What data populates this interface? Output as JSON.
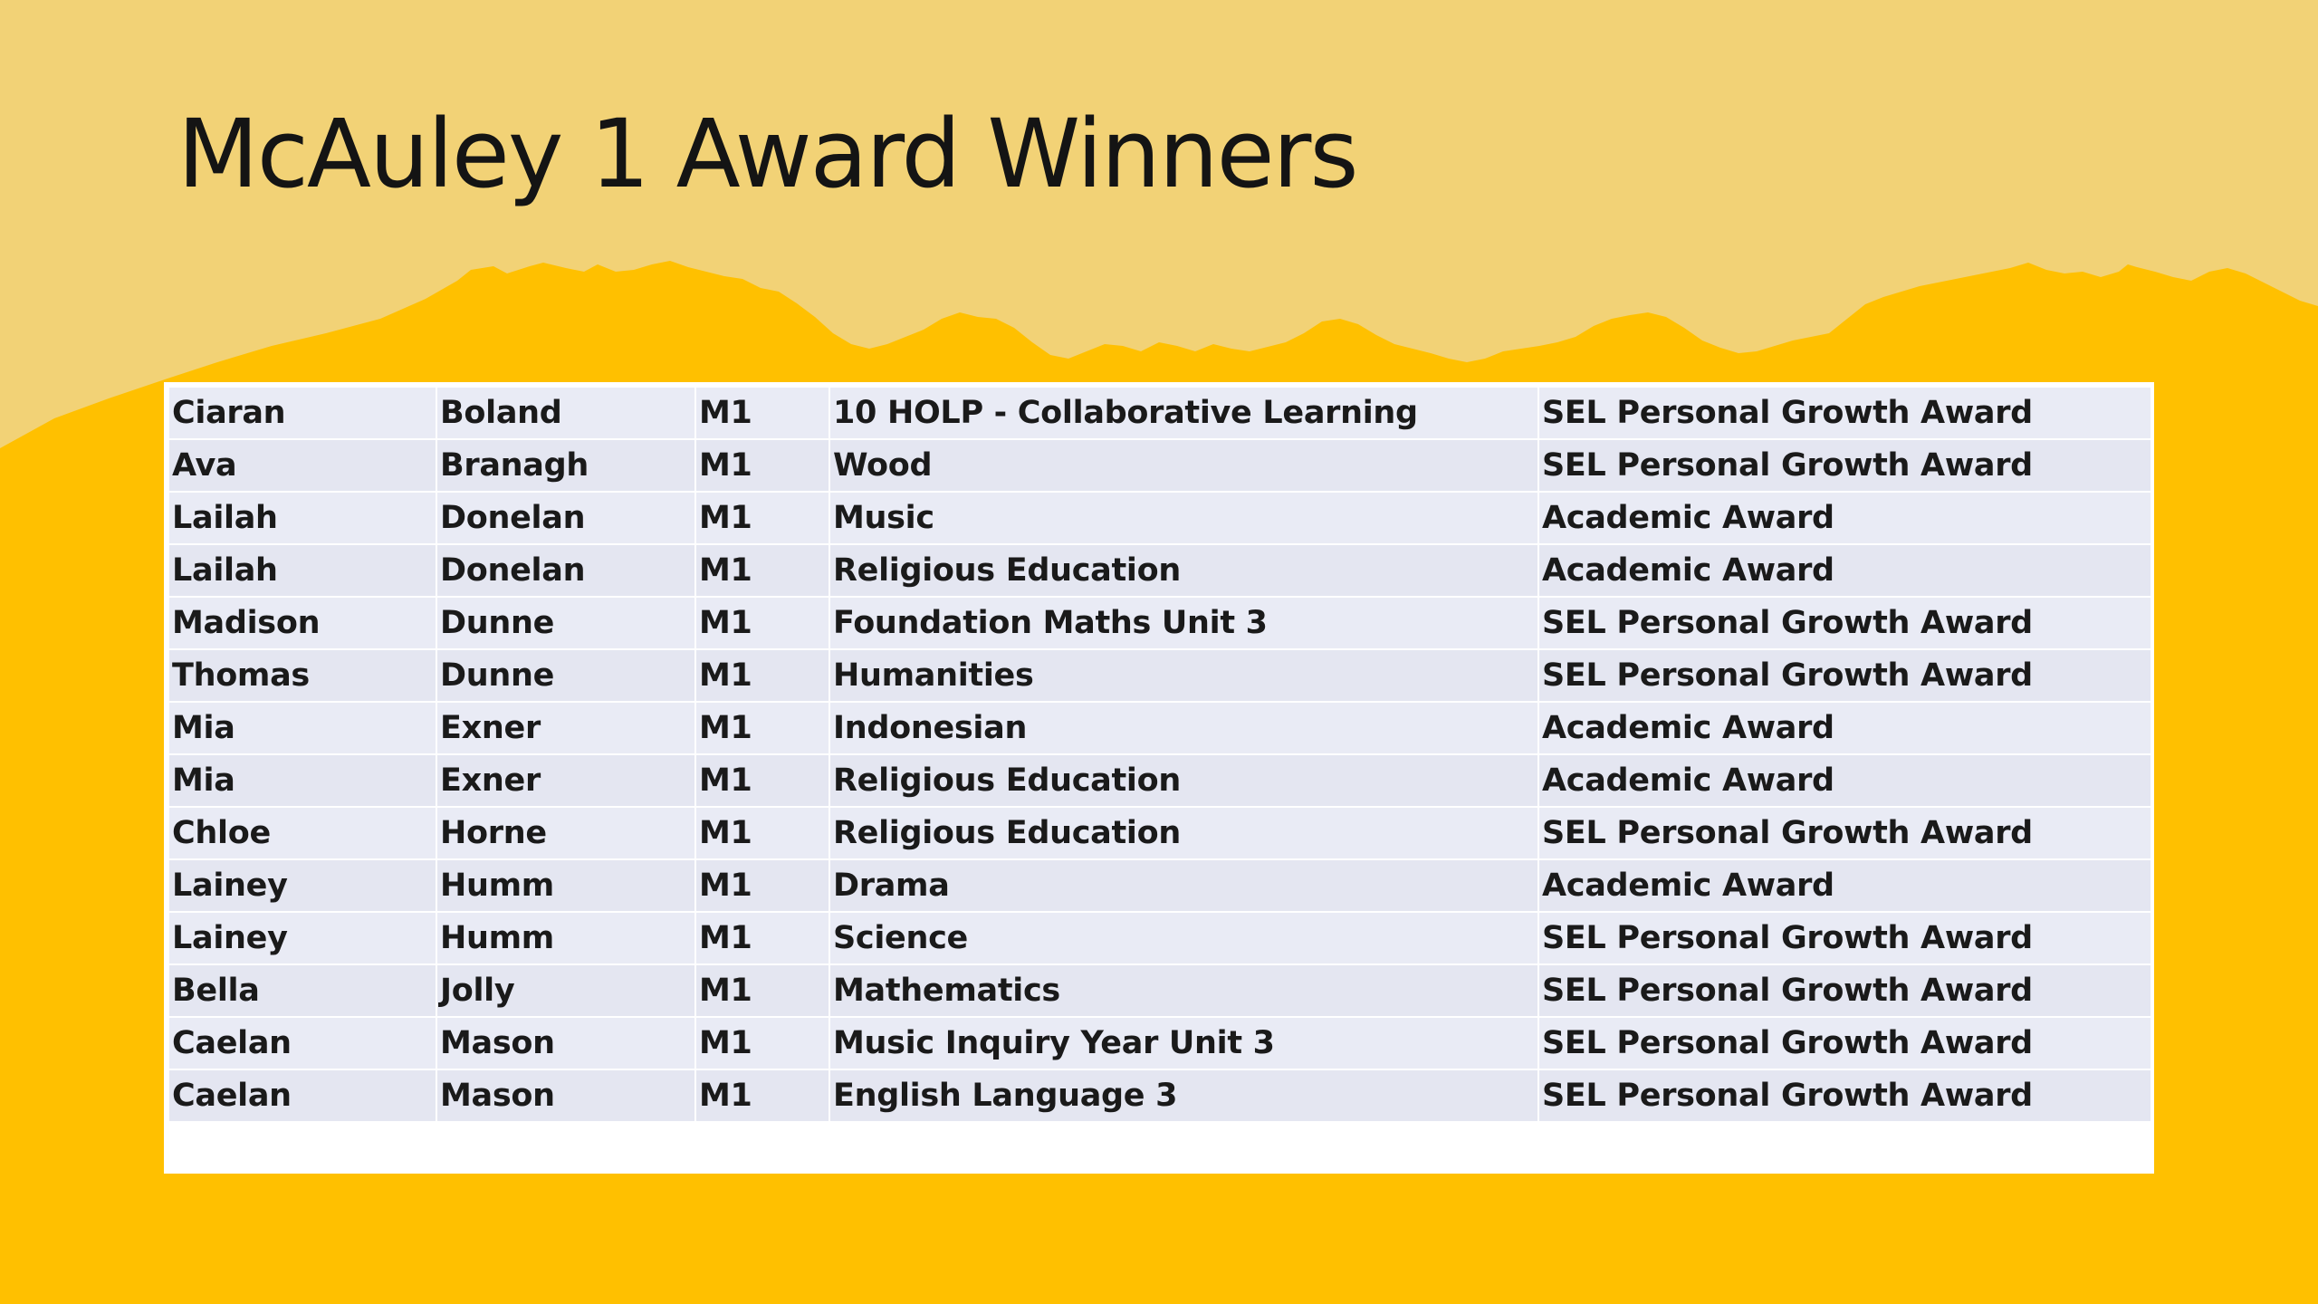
{
  "slide": {
    "title": "McAuley 1 Award Winners"
  },
  "colors": {
    "background_light": "#F2D276",
    "background_gold": "#FFC000",
    "table_row": "#E9EBF5",
    "title_text": "#141414"
  },
  "table": {
    "rows": [
      {
        "first": "Ciaran",
        "last": "Boland",
        "class": "M1",
        "subject": "10 HOLP - Collaborative Learning",
        "award": "SEL Personal Growth Award"
      },
      {
        "first": "Ava",
        "last": "Branagh",
        "class": "M1",
        "subject": "Wood",
        "award": "SEL Personal Growth Award"
      },
      {
        "first": "Lailah",
        "last": "Donelan",
        "class": "M1",
        "subject": "Music",
        "award": "Academic Award"
      },
      {
        "first": "Lailah",
        "last": "Donelan",
        "class": "M1",
        "subject": "Religious Education",
        "award": "Academic Award"
      },
      {
        "first": "Madison",
        "last": "Dunne",
        "class": "M1",
        "subject": "Foundation Maths Unit 3",
        "award": "SEL Personal Growth Award"
      },
      {
        "first": "Thomas",
        "last": "Dunne",
        "class": "M1",
        "subject": "Humanities",
        "award": "SEL Personal Growth Award"
      },
      {
        "first": "Mia",
        "last": "Exner",
        "class": "M1",
        "subject": "Indonesian",
        "award": "Academic Award"
      },
      {
        "first": "Mia",
        "last": "Exner",
        "class": "M1",
        "subject": "Religious Education",
        "award": "Academic Award"
      },
      {
        "first": "Chloe",
        "last": "Horne",
        "class": "M1",
        "subject": "Religious Education",
        "award": "SEL Personal Growth Award"
      },
      {
        "first": "Lainey",
        "last": "Humm",
        "class": "M1",
        "subject": "Drama",
        "award": "Academic Award"
      },
      {
        "first": "Lainey",
        "last": "Humm",
        "class": "M1",
        "subject": "Science",
        "award": "SEL Personal Growth Award"
      },
      {
        "first": "Bella",
        "last": "Jolly",
        "class": "M1",
        "subject": "Mathematics",
        "award": "SEL Personal Growth Award"
      },
      {
        "first": "Caelan",
        "last": "Mason",
        "class": "M1",
        "subject": "Music Inquiry Year Unit 3",
        "award": "SEL Personal Growth Award"
      },
      {
        "first": "Caelan",
        "last": "Mason",
        "class": "M1",
        "subject": "English Language 3",
        "award": "SEL Personal Growth Award"
      }
    ]
  }
}
